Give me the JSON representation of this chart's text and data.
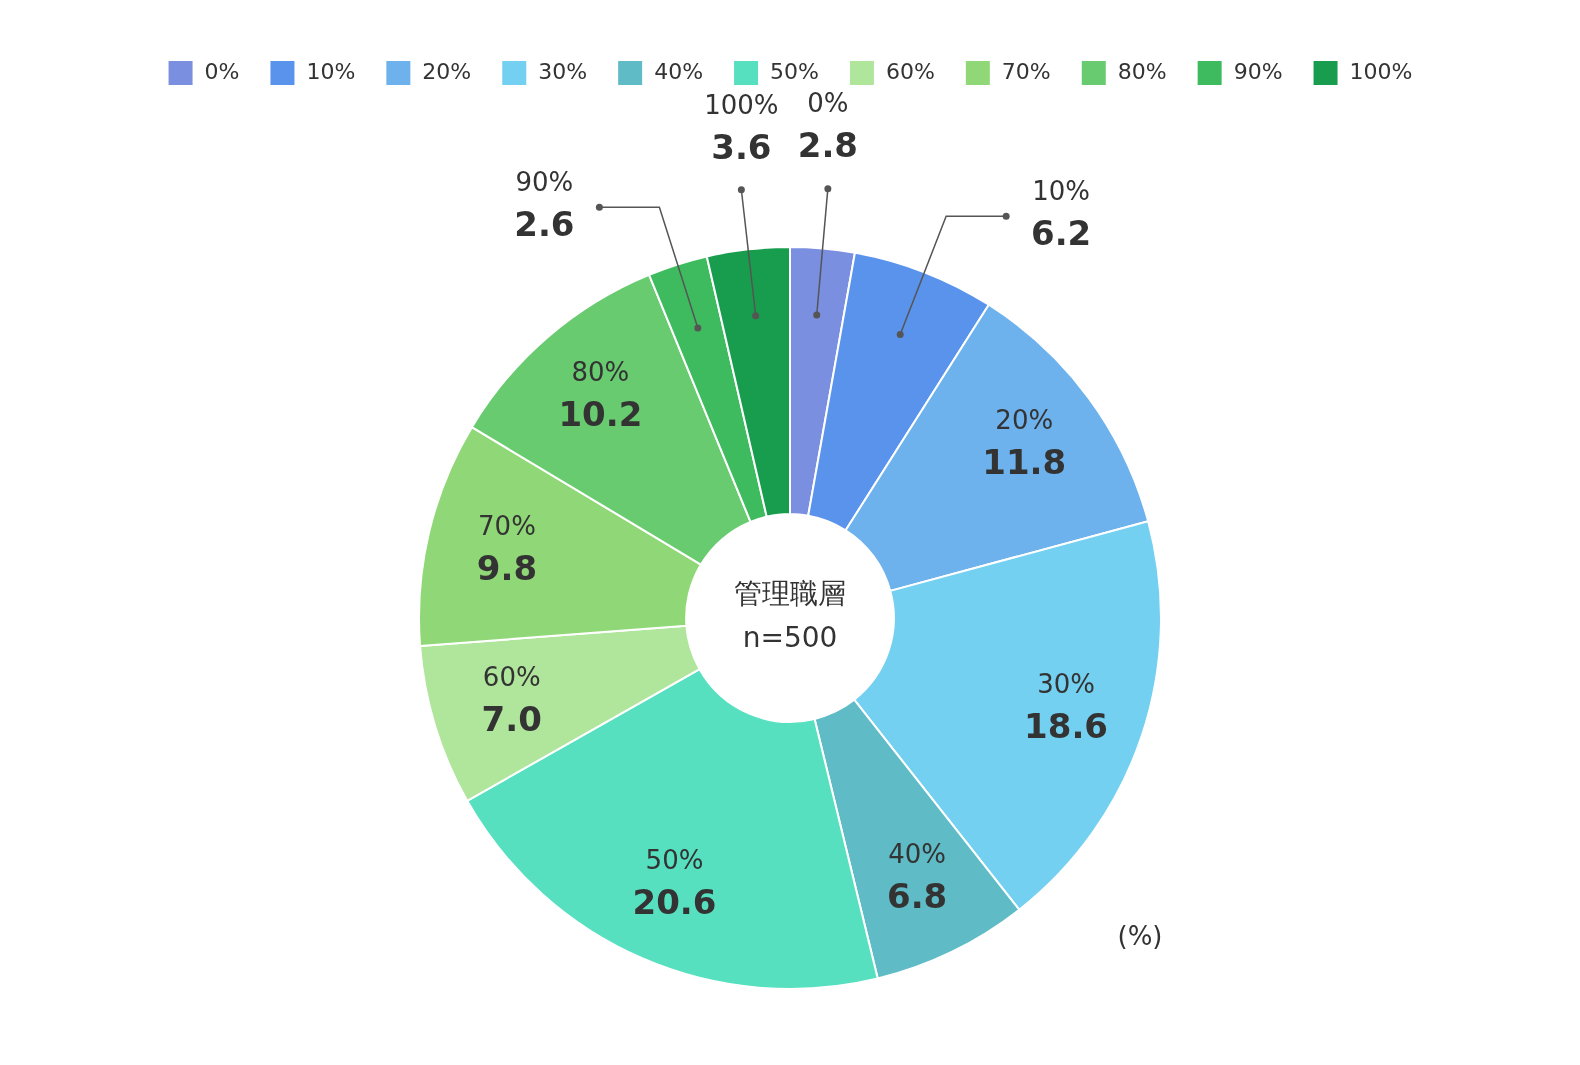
{
  "chart_data": {
    "type": "donut",
    "categories": [
      "0%",
      "10%",
      "20%",
      "30%",
      "40%",
      "50%",
      "60%",
      "70%",
      "80%",
      "90%",
      "100%"
    ],
    "values": [
      2.8,
      6.2,
      11.8,
      18.6,
      6.8,
      20.6,
      7.0,
      9.8,
      10.2,
      2.6,
      3.6
    ],
    "value_labels": [
      "2.8",
      "6.2",
      "11.8",
      "18.6",
      "6.8",
      "20.6",
      "7.0",
      "9.8",
      "10.2",
      "2.6",
      "3.6"
    ],
    "colors": [
      "#7b8fe0",
      "#5a93ec",
      "#6db2ec",
      "#74d0f0",
      "#5fbbc6",
      "#57e0c0",
      "#b0e59c",
      "#90d877",
      "#68cb6f",
      "#3fbb5f",
      "#189c4e"
    ],
    "legend": "top",
    "annotations": [
      "管理職層",
      "n=500",
      "(%)"
    ]
  }
}
